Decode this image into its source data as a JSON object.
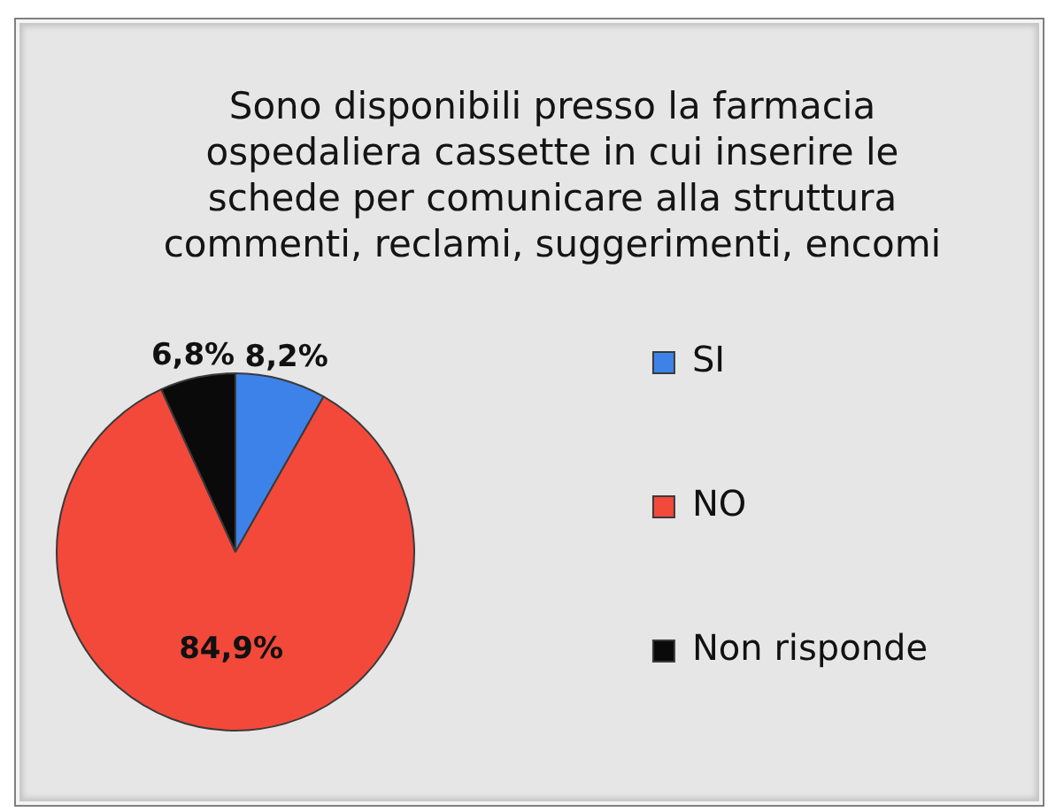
{
  "chart_data": {
    "type": "pie",
    "title": "Sono disponibili presso la farmacia ospedaliera cassette in cui inserire le schede per comunicare alla struttura commenti, reclami, suggerimenti, encomi",
    "categories": [
      "SI",
      "NO",
      "Non risponde"
    ],
    "values": [
      8.2,
      84.9,
      6.8
    ],
    "colors": [
      "#3d82e8",
      "#f2493b",
      "#0a0a0a"
    ],
    "value_labels": [
      "8,2%",
      "84,9%",
      "6,8%"
    ],
    "legend": "right"
  }
}
